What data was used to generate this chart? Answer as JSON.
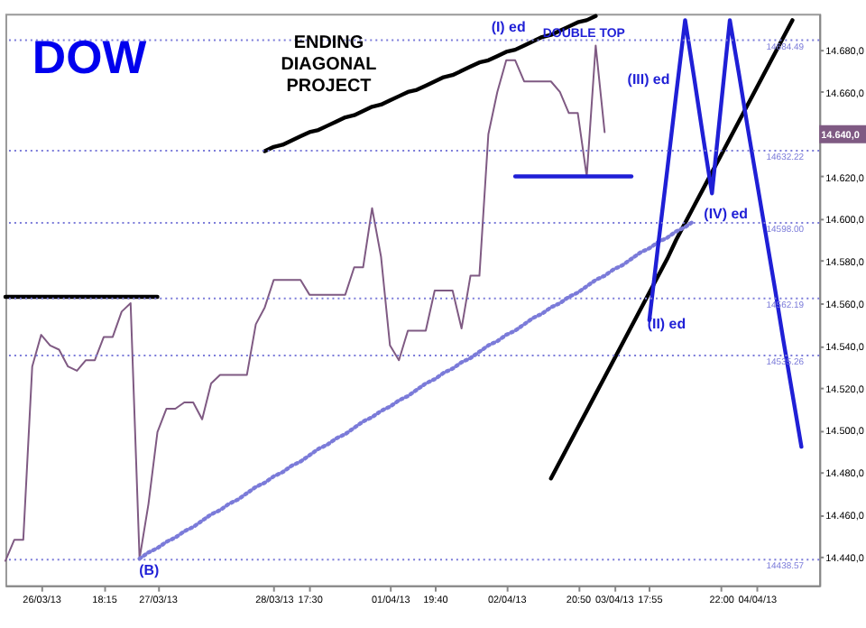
{
  "chart_data": {
    "type": "line",
    "title": "DOW",
    "categories": [
      null,
      null,
      null,
      null,
      "26/03/13",
      null,
      null,
      null,
      null,
      null,
      null,
      "18:15",
      null,
      null,
      null,
      null,
      null,
      "27/03/13",
      null,
      null,
      null,
      null,
      null,
      null,
      null,
      null,
      null,
      null,
      null,
      null,
      "28/03/13",
      null,
      null,
      null,
      "17:30",
      null,
      null,
      null,
      null,
      null,
      null,
      null,
      null,
      "01/04/13",
      null,
      null,
      null,
      null,
      "19:40",
      null,
      null,
      null,
      null,
      null,
      null,
      null,
      "02/04/13",
      null,
      null,
      null,
      null,
      null,
      null,
      null,
      "20:50",
      null,
      null,
      null,
      "03/04/13",
      null,
      null,
      null,
      "17:55",
      null,
      null,
      null,
      null,
      null,
      null,
      null,
      "22:00",
      null,
      null,
      null,
      "04/04/13",
      null,
      null,
      null,
      null,
      null,
      null,
      null
    ],
    "ylim": [
      14426.4,
      14697
    ],
    "yticks": [
      {
        "value": 14440,
        "label": "14.440,0"
      },
      {
        "value": 14460,
        "label": "14.460,0"
      },
      {
        "value": 14480,
        "label": "14.480,0"
      },
      {
        "value": 14500,
        "label": "14.500,0"
      },
      {
        "value": 14520,
        "label": "14.520,0"
      },
      {
        "value": 14540,
        "label": "14.540,0"
      },
      {
        "value": 14560,
        "label": "14.560,0"
      },
      {
        "value": 14580,
        "label": "14.580,0"
      },
      {
        "value": 14600,
        "label": "14.600,0"
      },
      {
        "value": 14620,
        "label": "14.620,0"
      },
      {
        "value": 14640,
        "label": null
      },
      {
        "value": 14660,
        "label": "14.660,0"
      },
      {
        "value": 14680,
        "label": "14.680,0"
      }
    ],
    "grid": false,
    "marker": "none",
    "series": [
      {
        "color": "#7f5a83",
        "line_style": "solid",
        "values": [
          14438,
          14448,
          14448,
          14530,
          14545,
          14540,
          14538,
          14530,
          14528,
          14533,
          14533,
          14544,
          14544,
          14556,
          14560,
          14439,
          14465,
          14499,
          14510,
          14510,
          14513,
          14513,
          14505,
          14522,
          14526,
          14526,
          14526,
          14526,
          14550,
          14558,
          14571,
          14571,
          14571,
          14571,
          14564,
          14564,
          14564,
          14564,
          14564,
          14577,
          14577,
          14605,
          14582,
          14540,
          14533,
          14547,
          14547,
          14547,
          14566,
          14566,
          14566,
          14548,
          14573,
          14573,
          14640,
          14660,
          14675,
          14675,
          14665,
          14665,
          14665,
          14665,
          14660,
          14650,
          14650,
          14620,
          14682,
          14641,
          null,
          null,
          null,
          null,
          null,
          null,
          null,
          null,
          null,
          null,
          null,
          null,
          null,
          null,
          null,
          null,
          null,
          null,
          null,
          null,
          null,
          null,
          null,
          null
        ]
      },
      {
        "color": "#000000",
        "line_style": "solid",
        "values": [
          14563,
          14563,
          14563,
          14563,
          14563,
          14563,
          14563,
          14563,
          14563,
          14563,
          14563,
          14563,
          14563,
          14563,
          14563,
          14563,
          14563,
          14563,
          null,
          null,
          null,
          null,
          null,
          null,
          null,
          null,
          null,
          null,
          null,
          null,
          null,
          null,
          null,
          null,
          null,
          null,
          null,
          null,
          null,
          null,
          null,
          null,
          null,
          null,
          null,
          null,
          null,
          null,
          null,
          null,
          null,
          null,
          null,
          null,
          null,
          null,
          null,
          null,
          null,
          null,
          null,
          null,
          null,
          null,
          null,
          null,
          null,
          null,
          null,
          null,
          null,
          null,
          null,
          null,
          null,
          null,
          null,
          null,
          null,
          null,
          null,
          null,
          null,
          null,
          null,
          null,
          null,
          null,
          null,
          null,
          null,
          null
        ]
      },
      {
        "color": "#000000",
        "line_style": "solid",
        "values": [
          null,
          null,
          null,
          null,
          null,
          null,
          null,
          null,
          null,
          null,
          null,
          null,
          null,
          null,
          null,
          null,
          null,
          null,
          null,
          null,
          null,
          null,
          null,
          null,
          null,
          null,
          null,
          null,
          null,
          14632,
          14634,
          14635,
          14637,
          14639,
          14641,
          14642,
          14644,
          14646,
          14648,
          14649,
          14651,
          14653,
          14654,
          14656,
          14658,
          14660,
          14661,
          14663,
          14665,
          14667,
          14668,
          14670,
          14672,
          14674,
          14675,
          14677,
          14679,
          14680,
          14682,
          14684,
          14686,
          14687,
          14689,
          14691,
          14693,
          14694,
          14696,
          null,
          null,
          null,
          null,
          null,
          null,
          null,
          null,
          null,
          null,
          null,
          null,
          null,
          null,
          null,
          null,
          null,
          null,
          null,
          null,
          null,
          null,
          null,
          null,
          null
        ]
      },
      {
        "color": "#000000",
        "line_style": "solid",
        "values": [
          null,
          null,
          null,
          null,
          null,
          null,
          null,
          null,
          null,
          null,
          null,
          null,
          null,
          null,
          null,
          null,
          null,
          null,
          null,
          null,
          null,
          null,
          null,
          null,
          null,
          null,
          null,
          null,
          null,
          null,
          null,
          null,
          null,
          null,
          null,
          null,
          null,
          null,
          null,
          null,
          null,
          null,
          null,
          null,
          null,
          null,
          null,
          null,
          null,
          null,
          null,
          null,
          null,
          null,
          null,
          null,
          null,
          null,
          null,
          null,
          null,
          14477,
          14485,
          14493,
          14501,
          14509,
          14517,
          14525,
          14533,
          14541,
          14549,
          14557,
          14565,
          14573,
          14581,
          14590,
          14598,
          14606,
          14614,
          14622,
          14630,
          14638,
          14646,
          14654,
          14662,
          14670,
          14678,
          14686,
          14694,
          null,
          null,
          null
        ]
      },
      {
        "color": "#7b7bd9",
        "line_style": "dotted",
        "values": [
          null,
          null,
          null,
          null,
          null,
          null,
          null,
          null,
          null,
          null,
          null,
          null,
          null,
          null,
          null,
          14439,
          14442,
          14444,
          14447,
          14449,
          14452,
          14454,
          14457,
          14460,
          14462,
          14465,
          14467,
          14470,
          14473,
          14475,
          14478,
          14480,
          14483,
          14485,
          14488,
          14491,
          14493,
          14496,
          14498,
          14501,
          14504,
          14506,
          14509,
          14511,
          14514,
          14516,
          14519,
          14522,
          14524,
          14527,
          14529,
          14532,
          14534,
          14537,
          14540,
          14542,
          14545,
          14547,
          14550,
          14553,
          14555,
          14558,
          14560,
          14563,
          14565,
          14568,
          14571,
          14573,
          14576,
          14578,
          14581,
          14584,
          14586,
          14589,
          14591,
          14594,
          14596,
          14599,
          null,
          null,
          null,
          null,
          null,
          null,
          null,
          null,
          null,
          null,
          null,
          null,
          null,
          null
        ]
      },
      {
        "color": "#1f1fd6",
        "line_style": "solid",
        "values": [
          null,
          null,
          null,
          null,
          null,
          null,
          null,
          null,
          null,
          null,
          null,
          null,
          null,
          null,
          null,
          null,
          null,
          null,
          null,
          null,
          null,
          null,
          null,
          null,
          null,
          null,
          null,
          null,
          null,
          null,
          null,
          null,
          null,
          null,
          null,
          null,
          null,
          null,
          null,
          null,
          null,
          null,
          null,
          null,
          null,
          null,
          null,
          null,
          null,
          null,
          null,
          null,
          null,
          null,
          null,
          null,
          null,
          14620,
          14620,
          14620,
          14620,
          14620,
          14620,
          14620,
          14620,
          14620,
          14620,
          14620,
          14620,
          14620,
          14620,
          null,
          null,
          null,
          null,
          null,
          null,
          null,
          null,
          null,
          null,
          null,
          null,
          null,
          null,
          null,
          null,
          null,
          null,
          null,
          null,
          null
        ]
      },
      {
        "color": "#1f1fd6",
        "line_style": "solid",
        "values": [
          null,
          null,
          null,
          null,
          null,
          null,
          null,
          null,
          null,
          null,
          null,
          null,
          null,
          null,
          null,
          null,
          null,
          null,
          null,
          null,
          null,
          null,
          null,
          null,
          null,
          null,
          null,
          null,
          null,
          null,
          null,
          null,
          null,
          null,
          null,
          null,
          null,
          null,
          null,
          null,
          null,
          null,
          null,
          null,
          null,
          null,
          null,
          null,
          null,
          null,
          null,
          null,
          null,
          null,
          null,
          null,
          null,
          null,
          null,
          null,
          null,
          null,
          null,
          null,
          null,
          null,
          null,
          null,
          null,
          null,
          null,
          null,
          14552,
          14588,
          14623,
          14659,
          14694,
          14667,
          14639,
          14612,
          14653,
          14694,
          14669,
          14643,
          14618,
          14593,
          14568,
          14542,
          14517,
          14492,
          null,
          null
        ]
      }
    ],
    "ref_lines": [
      {
        "axis": "y",
        "value": 14684.49,
        "label": "14684.49",
        "color": "#7b7bd9",
        "line_style": "dotted"
      },
      {
        "axis": "y",
        "value": 14632.22,
        "label": "14632.22",
        "color": "#7b7bd9",
        "line_style": "dotted"
      },
      {
        "axis": "y",
        "value": 14598.0,
        "label": "14598.00",
        "color": "#7b7bd9",
        "line_style": "dotted"
      },
      {
        "axis": "y",
        "value": 14562.19,
        "label": "14562.19",
        "color": "#7b7bd9",
        "line_style": "dotted"
      },
      {
        "axis": "y",
        "value": 14535.26,
        "label": "14535.26",
        "color": "#7b7bd9",
        "line_style": "dotted"
      },
      {
        "axis": "y",
        "value": 14438.57,
        "label": "14438.57",
        "color": "#7b7bd9",
        "line_style": "dotted"
      }
    ],
    "annotations": [
      "ENDING DIAGONAL PROJECT",
      {
        "text": "DOUBLE TOP",
        "y": 14684.49
      },
      "(I) ed",
      "(III) ed",
      "(IV) ed",
      "(II) ed",
      "(B)",
      "14.640,0"
    ]
  }
}
